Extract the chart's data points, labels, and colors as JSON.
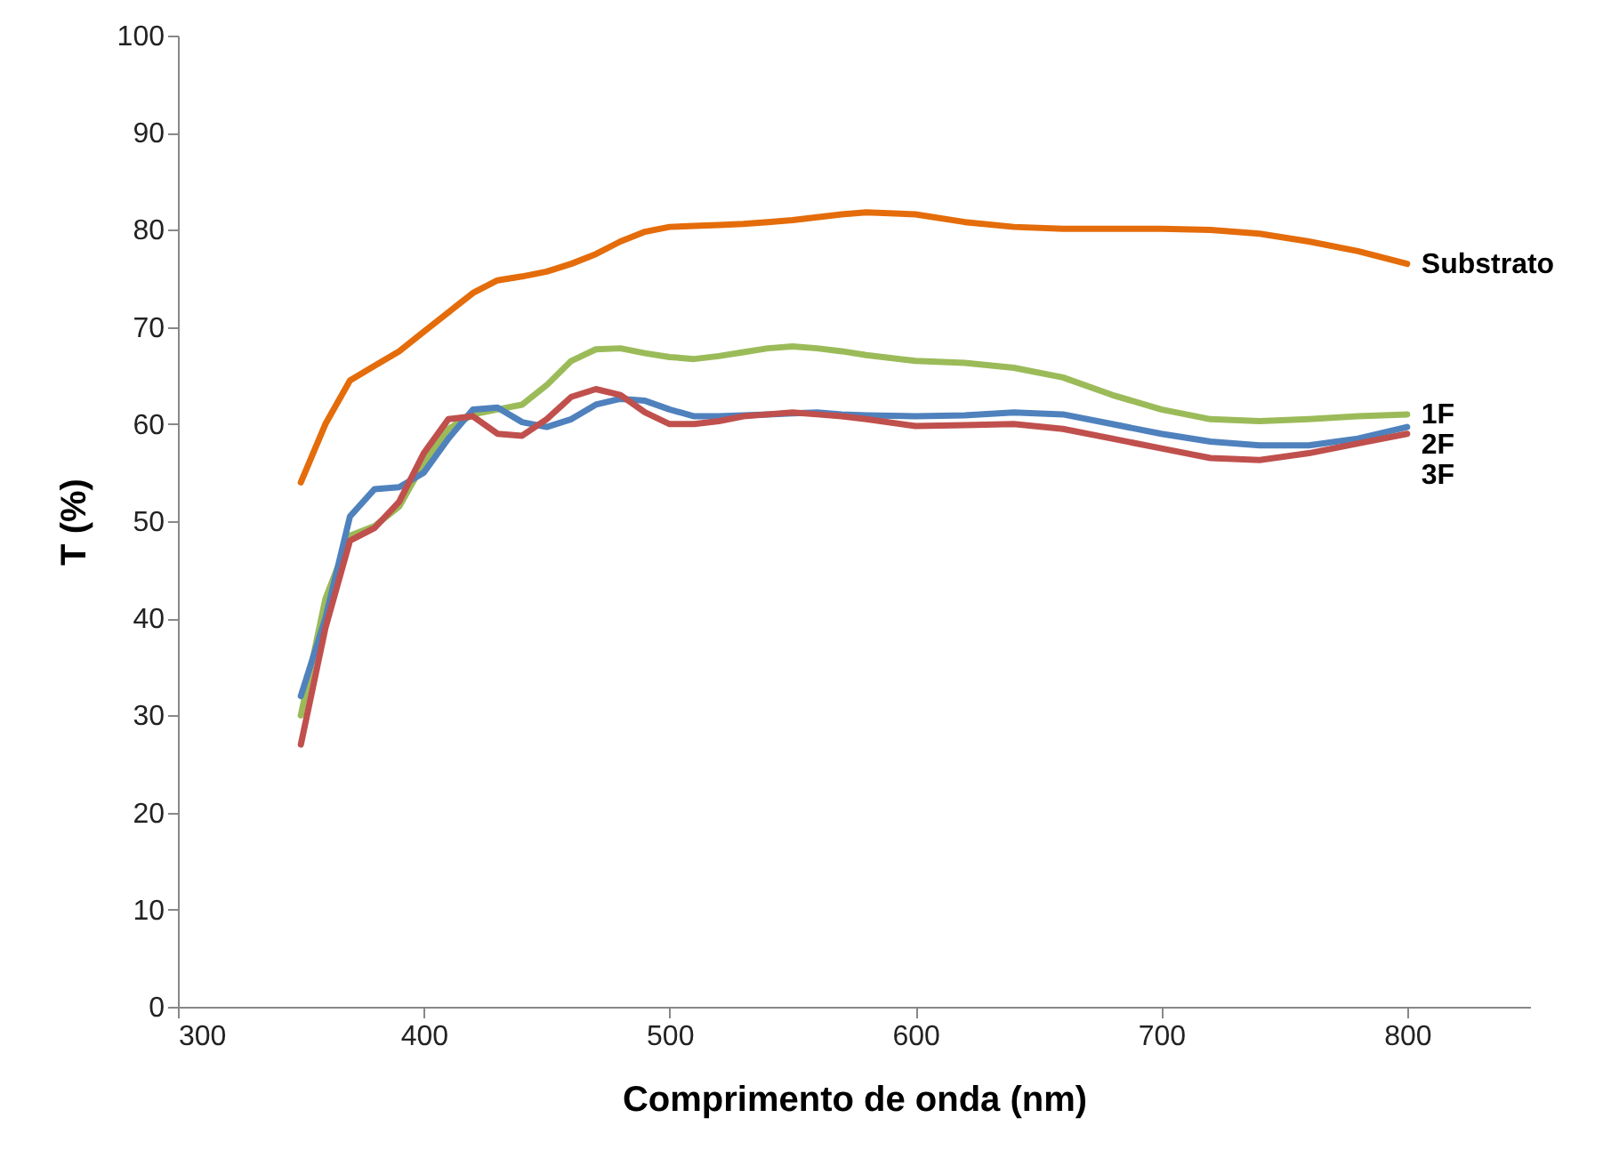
{
  "chart_data": {
    "type": "line",
    "xlabel": "Comprimento de onda (nm)",
    "ylabel": "T (%)",
    "xlim": [
      300,
      850
    ],
    "xticks": [
      300,
      400,
      500,
      600,
      700,
      800
    ],
    "ylim": [
      0,
      100
    ],
    "yticks": [
      0,
      10,
      20,
      30,
      40,
      50,
      60,
      70,
      80,
      90,
      100
    ],
    "grid": false,
    "marker": "none",
    "line_style": "solid",
    "x": [
      350,
      360,
      370,
      380,
      390,
      400,
      410,
      420,
      430,
      440,
      450,
      460,
      470,
      480,
      490,
      500,
      510,
      520,
      530,
      540,
      550,
      560,
      570,
      580,
      600,
      620,
      640,
      660,
      680,
      700,
      720,
      740,
      760,
      780,
      800
    ],
    "series": [
      {
        "name": "Substrato",
        "color": "#e46c0a",
        "values": [
          54,
          60,
          64.5,
          66,
          67.5,
          69.5,
          71.5,
          73.5,
          74.8,
          75.2,
          75.7,
          76.5,
          77.5,
          78.8,
          79.8,
          80.3,
          80.4,
          80.5,
          80.6,
          80.8,
          81,
          81.3,
          81.6,
          81.8,
          81.6,
          80.8,
          80.3,
          80.1,
          80.1,
          80.1,
          80,
          79.6,
          78.8,
          77.8,
          76.5
        ]
      },
      {
        "name": "1F",
        "color": "#9bbb59",
        "values": [
          30,
          42,
          48.5,
          49.5,
          51.5,
          56,
          59.5,
          61,
          61.5,
          62,
          64,
          66.5,
          67.7,
          67.8,
          67.3,
          66.9,
          66.7,
          67,
          67.4,
          67.8,
          68,
          67.8,
          67.5,
          67.1,
          66.5,
          66.3,
          65.8,
          64.8,
          63,
          61.5,
          60.5,
          60.3,
          60.5,
          60.8,
          61
        ]
      },
      {
        "name": "2F",
        "color": "#4f81bd",
        "values": [
          32,
          40,
          50.5,
          53.3,
          53.5,
          55,
          58.5,
          61.5,
          61.7,
          60.2,
          59.7,
          60.5,
          62,
          62.6,
          62.4,
          61.5,
          60.8,
          60.8,
          60.9,
          61,
          61.1,
          61.2,
          61,
          60.9,
          60.8,
          60.9,
          61.2,
          61,
          60,
          59,
          58.2,
          57.8,
          57.8,
          58.5,
          59.7
        ]
      },
      {
        "name": "3F",
        "color": "#c0504d",
        "values": [
          27,
          39,
          48,
          49.3,
          52,
          57,
          60.5,
          60.8,
          59,
          58.8,
          60.5,
          62.8,
          63.6,
          63,
          61.2,
          60,
          60,
          60.3,
          60.8,
          61,
          61.2,
          61,
          60.8,
          60.5,
          59.8,
          59.9,
          60,
          59.5,
          58.5,
          57.5,
          56.5,
          56.3,
          57,
          58,
          59
        ]
      }
    ]
  }
}
